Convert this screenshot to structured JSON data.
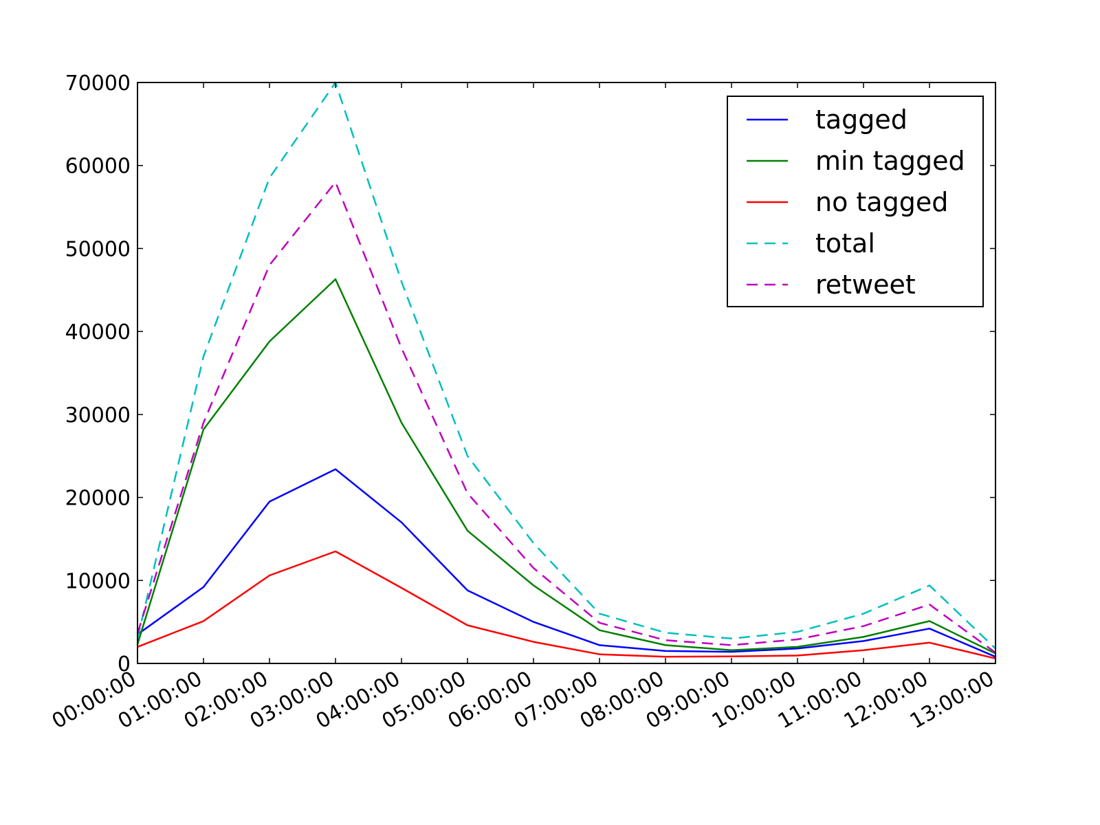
{
  "chart_data": {
    "type": "line",
    "title": "",
    "xlabel": "",
    "ylabel": "",
    "categories": [
      "00:00:00",
      "01:00:00",
      "02:00:00",
      "03:00:00",
      "04:00:00",
      "05:00:00",
      "06:00:00",
      "07:00:00",
      "08:00:00",
      "09:00:00",
      "10:00:00",
      "11:00:00",
      "12:00:00",
      "13:00:00"
    ],
    "ylim": [
      0,
      70000
    ],
    "yticks": [
      0,
      10000,
      20000,
      30000,
      40000,
      50000,
      60000,
      70000
    ],
    "grid": false,
    "legend_position": "top-right",
    "series": [
      {
        "name": "tagged",
        "color": "#0000ff",
        "style": "solid",
        "values": [
          3500,
          9200,
          19500,
          23400,
          17000,
          8800,
          5000,
          2200,
          1500,
          1400,
          1800,
          2700,
          4200,
          800
        ]
      },
      {
        "name": "min tagged",
        "color": "#008000",
        "style": "solid",
        "values": [
          2300,
          28200,
          38800,
          46300,
          29000,
          16000,
          9400,
          4000,
          2200,
          1600,
          2000,
          3200,
          5100,
          1200
        ]
      },
      {
        "name": "no tagged",
        "color": "#ff0000",
        "style": "solid",
        "values": [
          2000,
          5100,
          10600,
          13500,
          9100,
          4600,
          2600,
          1100,
          800,
          850,
          950,
          1600,
          2500,
          600
        ]
      },
      {
        "name": "total",
        "color": "#00bfbf",
        "style": "dashed",
        "values": [
          3000,
          37000,
          58500,
          70000,
          46000,
          25000,
          14500,
          6000,
          3700,
          3000,
          3800,
          6000,
          9400,
          1800
        ]
      },
      {
        "name": "retweet",
        "color": "#bf00bf",
        "style": "dashed",
        "values": [
          3600,
          29000,
          48000,
          58000,
          38000,
          20500,
          11500,
          4900,
          2800,
          2200,
          2900,
          4500,
          7100,
          1300
        ]
      }
    ]
  }
}
